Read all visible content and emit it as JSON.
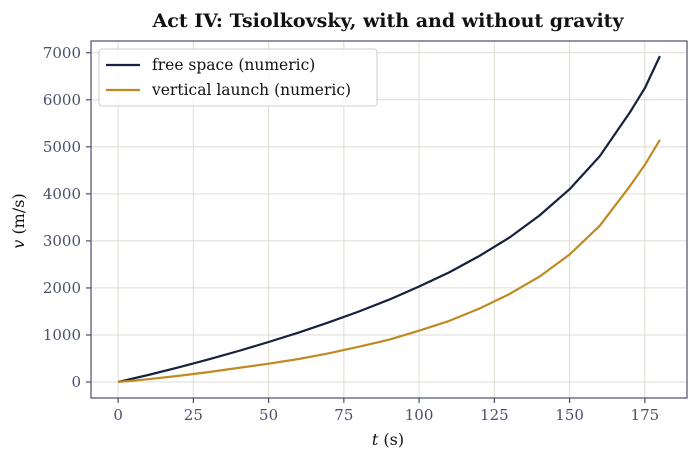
{
  "chart_data": {
    "type": "line",
    "title": "Act IV: Tsiolkovsky, with and without gravity",
    "xlabel_var": "t",
    "xlabel_unit": " (s)",
    "ylabel_var": "v",
    "ylabel_unit": " (m/s)",
    "xlim": [
      -9,
      189
    ],
    "ylim": [
      -340,
      7250
    ],
    "xticks": [
      0,
      25,
      50,
      75,
      100,
      125,
      150,
      175
    ],
    "yticks": [
      0,
      1000,
      2000,
      3000,
      4000,
      5000,
      6000,
      7000
    ],
    "grid": true,
    "legend_position": "top-left",
    "series": [
      {
        "name": "free space (numeric)",
        "color": "#16213e",
        "x": [
          0,
          10,
          20,
          30,
          40,
          50,
          60,
          70,
          80,
          90,
          100,
          110,
          120,
          130,
          140,
          150,
          160,
          170,
          175,
          180
        ],
        "values": [
          0,
          150,
          310,
          480,
          660,
          850,
          1050,
          1270,
          1500,
          1750,
          2030,
          2330,
          2680,
          3070,
          3540,
          4100,
          4800,
          5730,
          6250,
          6930
        ]
      },
      {
        "name": "vertical launch (numeric)",
        "color": "#c08a22",
        "x": [
          0,
          10,
          20,
          30,
          40,
          50,
          60,
          70,
          80,
          90,
          100,
          110,
          120,
          130,
          140,
          150,
          160,
          170,
          175,
          180
        ],
        "values": [
          0,
          60,
          130,
          210,
          300,
          390,
          490,
          610,
          750,
          900,
          1090,
          1300,
          1560,
          1870,
          2240,
          2710,
          3320,
          4160,
          4620,
          5150
        ]
      }
    ]
  }
}
